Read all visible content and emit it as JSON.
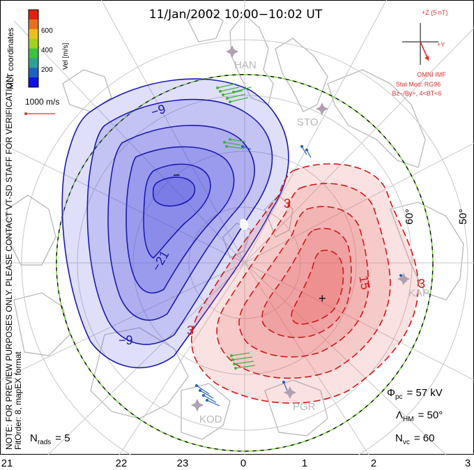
{
  "title": "11/Jan/2002 10:00−10:02 UT",
  "side_note_1": "NOTE: FOR PREVIEW PURPOSES ONLY. PLEASE CONTACT VT-SD STAFF FOR VERIFICATION.",
  "side_note_2": "FitOrder: 8, mapEX format",
  "coord_label": "MLT coordinates",
  "velocity_scale": {
    "label": "Vel [m/s]",
    "ticks": [
      "600",
      "400",
      "200"
    ],
    "colors": [
      "#1010e8",
      "#2060c0",
      "#30a090",
      "#40c040",
      "#a0d020",
      "#e8c020",
      "#e87020",
      "#e02010"
    ]
  },
  "reference_vector": {
    "label": "1000 m/s",
    "color": "#e03030"
  },
  "imf": {
    "axis_z": "+Z (5 nT)",
    "axis_y": "+Y",
    "label": "OMNI IMF",
    "model": "Stat Mod: RG96",
    "condition": "Bz−/By+, 4<BT<6",
    "color": "#e03030"
  },
  "stations": [
    "HAN",
    "STO",
    "KAP",
    "PGR",
    "KOD"
  ],
  "latitude_labels": [
    "60°",
    "50°"
  ],
  "contours": {
    "negative": [
      "−9",
      "−21",
      "−9"
    ],
    "positive": [
      "3",
      "15",
      "3",
      "3"
    ],
    "min_marker": "−",
    "max_marker": "+"
  },
  "stats": {
    "phi_pc_symbol": "Φ",
    "phi_pc_sub": "pc",
    "phi_pc_value": "= 57 kV",
    "lambda_symbol": "Λ",
    "lambda_sub": "HM",
    "lambda_value": "= 50°",
    "nvc_symbol": "N",
    "nvc_sub": "vc",
    "nvc_value": "= 60",
    "nrads_symbol": "N",
    "nrads_sub": "rads",
    "nrads_value": "= 5"
  },
  "mlt_labels": [
    "21",
    "22",
    "23",
    "0",
    "1",
    "2",
    "3"
  ],
  "colors": {
    "negative_line": "#1a1ab0",
    "negative_fill": "#5050e0",
    "positive_line": "#d01818",
    "positive_fill": "#e86060",
    "coast": "#b8b8b8",
    "grid": "#c8c8c8",
    "boundary_green": "#70d030"
  }
}
